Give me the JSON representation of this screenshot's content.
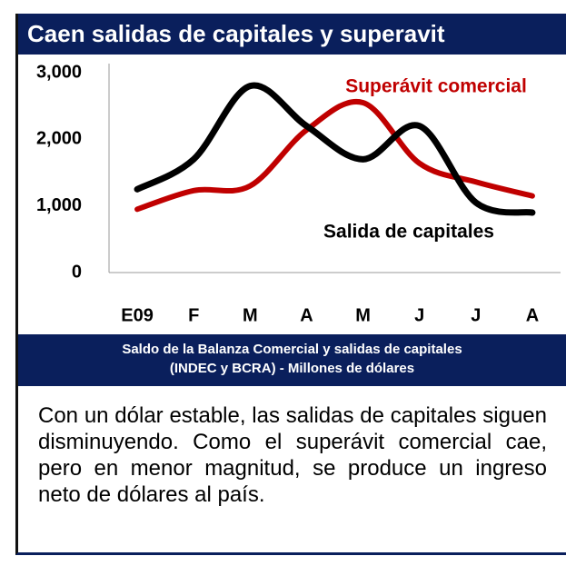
{
  "chart_data": {
    "type": "line",
    "title": "Caen salidas de capitales y superavit",
    "subtitle": [
      "Saldo de la Balanza Comercial y salidas de capitales",
      "(INDEC y BCRA) - Millones de dólares"
    ],
    "categories": [
      "E09",
      "F",
      "M",
      "A",
      "M",
      "J",
      "J",
      "A"
    ],
    "series": [
      {
        "name": "Superávit comercial",
        "color": "#c00000",
        "values": [
          950,
          1230,
          1300,
          2140,
          2550,
          1640,
          1360,
          1150
        ]
      },
      {
        "name": "Salida de capitales",
        "color": "#000000",
        "values": [
          1250,
          1700,
          2800,
          2200,
          1700,
          2200,
          1050,
          900
        ]
      }
    ],
    "ylim": [
      0,
      3000
    ],
    "yticks": [
      0,
      {
        "value": 1000,
        "label": "1,000"
      },
      {
        "value": 2000,
        "label": "2,000"
      },
      {
        "value": 3000,
        "label": "3,000"
      }
    ],
    "grid": false
  },
  "body": "Con un dólar estable, las salidas de capitales siguen disminuyendo. Como el superávit comercial cae, pero en menor magnitud, se produce un ingreso neto de dólares al país."
}
